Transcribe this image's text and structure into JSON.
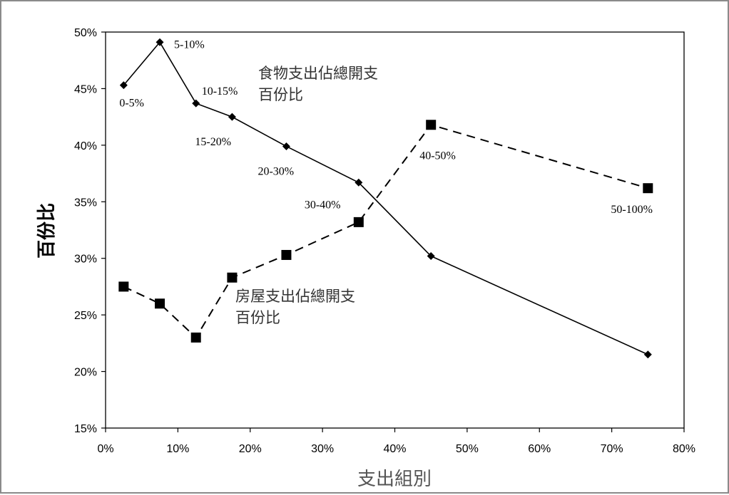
{
  "chart_data": {
    "type": "line",
    "xlabel": "支出組別",
    "ylabel": "百份比",
    "xlim": [
      0,
      80
    ],
    "ylim": [
      15,
      50
    ],
    "x_ticks": [
      "0%",
      "10%",
      "20%",
      "30%",
      "40%",
      "50%",
      "60%",
      "70%",
      "80%"
    ],
    "y_ticks": [
      "15%",
      "20%",
      "25%",
      "30%",
      "35%",
      "40%",
      "45%",
      "50%"
    ],
    "grid": false,
    "legend": "none",
    "series": [
      {
        "name": "食物支出佔總開支百份比",
        "name_lines": [
          "食物支出佔總開支",
          "百份比"
        ],
        "marker": "diamond",
        "line": "solid",
        "x": [
          2.5,
          7.5,
          12.5,
          17.5,
          25,
          35,
          45,
          75
        ],
        "y": [
          45.3,
          49.1,
          43.7,
          42.5,
          39.9,
          36.7,
          30.2,
          21.5
        ]
      },
      {
        "name": "房屋支出佔總開支百份比",
        "name_lines": [
          "房屋支出佔總開支",
          "百份比"
        ],
        "marker": "square",
        "line": "dashed",
        "x": [
          2.5,
          7.5,
          12.5,
          17.5,
          25,
          35,
          45,
          75
        ],
        "y": [
          27.5,
          26.0,
          23.0,
          28.3,
          30.3,
          33.2,
          41.8,
          36.2
        ]
      }
    ],
    "point_labels": [
      "0-5%",
      "5-10%",
      "10-15%",
      "15-20%",
      "20-30%",
      "30-40%",
      "40-50%",
      "50-100%"
    ]
  }
}
